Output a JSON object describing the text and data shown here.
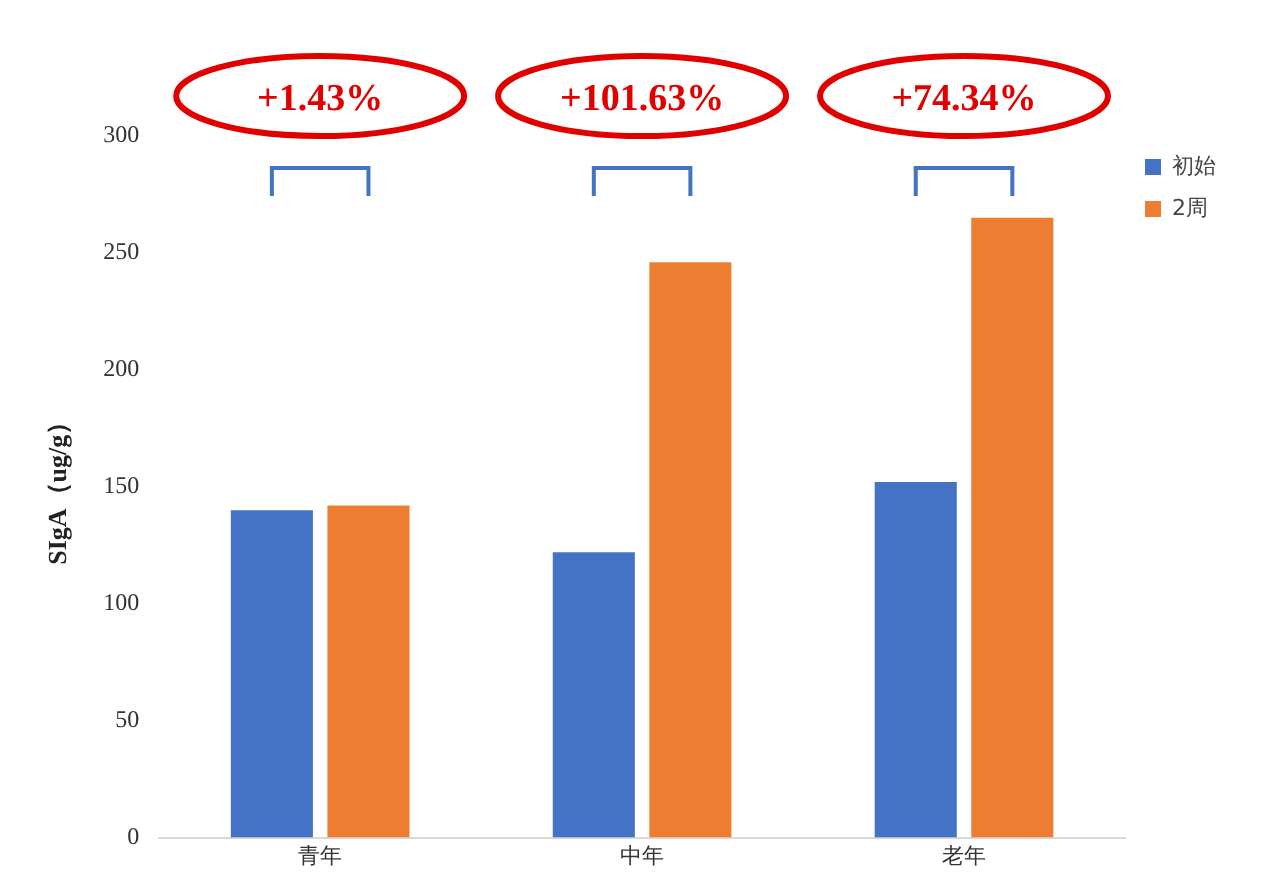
{
  "chart_data": {
    "type": "bar",
    "ylabel": "SIgA（ug/g）",
    "categories": [
      "青年",
      "中年",
      "老年"
    ],
    "series": [
      {
        "name": "初始",
        "color": "#4472c4",
        "values": [
          140,
          122,
          152
        ]
      },
      {
        "name": "2周",
        "color": "#ed7d31",
        "values": [
          142,
          246,
          265
        ]
      }
    ],
    "ylim": [
      0,
      300
    ],
    "yticks": [
      0,
      50,
      100,
      150,
      200,
      250,
      300
    ],
    "grid": false,
    "legend": "top right",
    "annotations": [
      "+1.43%",
      "+101.63%",
      "+74.34%"
    ]
  }
}
